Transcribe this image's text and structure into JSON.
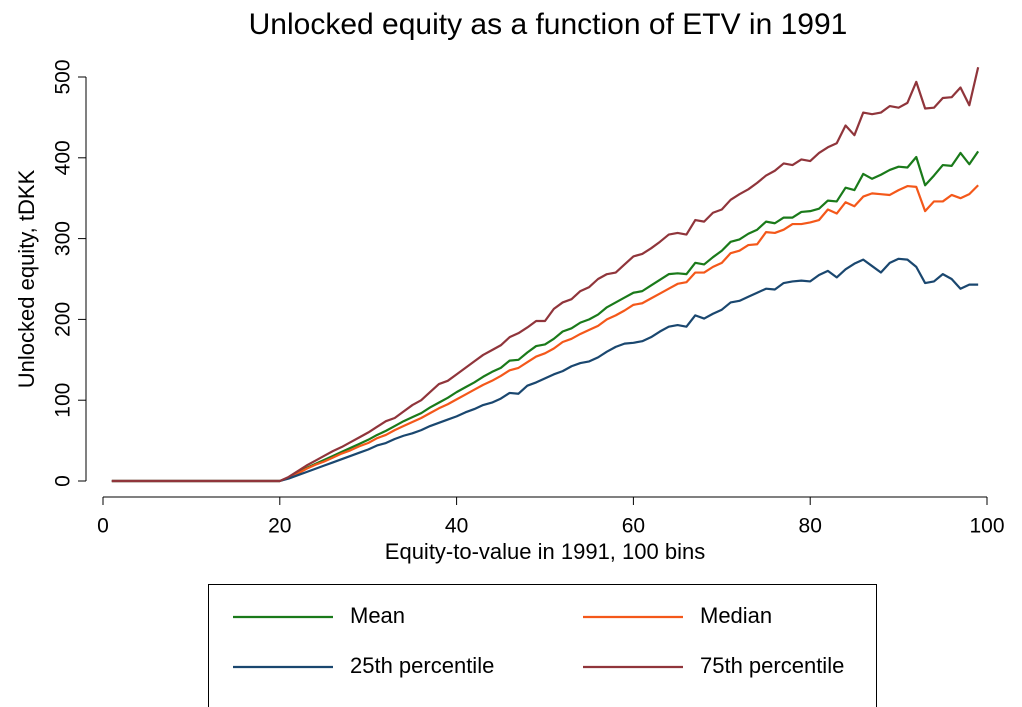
{
  "chart_data": {
    "type": "line",
    "title": "Unlocked equity as a function of ETV in 1991",
    "x_label": "Equity-to-value in 1991, 100 bins",
    "y_label": "Unlocked equity, tDKK",
    "x": [
      1,
      2,
      3,
      4,
      5,
      6,
      7,
      8,
      9,
      10,
      11,
      12,
      13,
      14,
      15,
      16,
      17,
      18,
      19,
      20,
      21,
      22,
      23,
      24,
      25,
      26,
      27,
      28,
      29,
      30,
      31,
      32,
      33,
      34,
      35,
      36,
      37,
      38,
      39,
      40,
      41,
      42,
      43,
      44,
      45,
      46,
      47,
      48,
      49,
      50,
      51,
      52,
      53,
      54,
      55,
      56,
      57,
      58,
      59,
      60,
      61,
      62,
      63,
      64,
      65,
      66,
      67,
      68,
      69,
      70,
      71,
      72,
      73,
      74,
      75,
      76,
      77,
      78,
      79,
      80,
      81,
      82,
      83,
      84,
      85,
      86,
      87,
      88,
      89,
      90,
      91,
      92,
      93,
      94,
      95,
      96,
      97,
      98,
      99
    ],
    "series": [
      {
        "name": "Mean",
        "color": "#1a7a1a",
        "values": [
          0,
          0,
          0,
          0,
          0,
          0,
          0,
          0,
          0,
          0,
          0,
          0,
          0,
          0,
          0,
          0,
          0,
          0,
          0,
          0,
          4,
          10,
          16,
          21,
          26,
          31,
          36,
          41,
          46,
          51,
          57,
          62,
          68,
          74,
          79,
          84,
          91,
          97,
          103,
          110,
          116,
          122,
          129,
          135,
          140,
          149,
          150,
          159,
          167,
          169,
          176,
          185,
          189,
          196,
          200,
          206,
          215,
          221,
          227,
          233,
          235,
          242,
          249,
          256,
          257,
          256,
          270,
          268,
          277,
          285,
          296,
          299,
          306,
          311,
          321,
          319,
          326,
          326,
          333,
          334,
          337,
          347,
          346,
          363,
          360,
          380,
          374,
          379,
          385,
          389,
          388,
          401,
          366,
          378,
          391,
          390,
          406,
          392,
          408
        ]
      },
      {
        "name": "Median",
        "color": "#f4581a",
        "values": [
          0,
          0,
          0,
          0,
          0,
          0,
          0,
          0,
          0,
          0,
          0,
          0,
          0,
          0,
          0,
          0,
          0,
          0,
          0,
          0,
          4,
          9,
          15,
          20,
          24,
          29,
          34,
          38,
          43,
          47,
          53,
          57,
          63,
          68,
          73,
          78,
          84,
          90,
          95,
          101,
          107,
          113,
          119,
          124,
          130,
          137,
          140,
          147,
          154,
          158,
          164,
          172,
          176,
          182,
          187,
          192,
          200,
          205,
          211,
          218,
          220,
          226,
          232,
          238,
          244,
          246,
          258,
          258,
          265,
          270,
          282,
          285,
          292,
          293,
          308,
          307,
          311,
          318,
          318,
          320,
          323,
          336,
          331,
          345,
          340,
          352,
          356,
          355,
          354,
          360,
          365,
          364,
          334,
          346,
          346,
          354,
          350,
          355,
          366
        ]
      },
      {
        "name": "25th percentile",
        "color": "#1a476f",
        "values": [
          0,
          0,
          0,
          0,
          0,
          0,
          0,
          0,
          0,
          0,
          0,
          0,
          0,
          0,
          0,
          0,
          0,
          0,
          0,
          0,
          3,
          7,
          11,
          15,
          19,
          23,
          27,
          31,
          35,
          39,
          44,
          47,
          52,
          56,
          59,
          63,
          68,
          72,
          76,
          80,
          85,
          89,
          94,
          97,
          102,
          109,
          108,
          118,
          122,
          127,
          132,
          136,
          142,
          146,
          148,
          153,
          160,
          166,
          170,
          171,
          173,
          178,
          185,
          191,
          193,
          191,
          205,
          201,
          207,
          212,
          221,
          223,
          228,
          233,
          238,
          237,
          245,
          247,
          248,
          247,
          255,
          260,
          252,
          262,
          269,
          274,
          266,
          258,
          270,
          275,
          274,
          265,
          245,
          247,
          256,
          250,
          238,
          243,
          243
        ]
      },
      {
        "name": "75th percentile",
        "color": "#90353b",
        "values": [
          0,
          0,
          0,
          0,
          0,
          0,
          0,
          0,
          0,
          0,
          0,
          0,
          0,
          0,
          0,
          0,
          0,
          0,
          0,
          0,
          5,
          12,
          19,
          25,
          31,
          37,
          42,
          48,
          54,
          60,
          67,
          74,
          78,
          86,
          94,
          100,
          110,
          120,
          124,
          132,
          140,
          148,
          156,
          162,
          168,
          178,
          183,
          190,
          198,
          198,
          213,
          221,
          225,
          235,
          240,
          250,
          256,
          258,
          268,
          278,
          281,
          288,
          296,
          305,
          307,
          305,
          323,
          321,
          332,
          336,
          348,
          355,
          361,
          369,
          378,
          384,
          393,
          391,
          398,
          396,
          406,
          413,
          418,
          440,
          428,
          456,
          454,
          456,
          464,
          462,
          468,
          494,
          461,
          462,
          474,
          475,
          487,
          465,
          512
        ]
      }
    ],
    "xlim": [
      0,
      100
    ],
    "xticks": [
      0,
      20,
      40,
      60,
      80,
      100
    ],
    "ylim": [
      0,
      500
    ],
    "yticks": [
      0,
      100,
      200,
      300,
      400,
      500
    ],
    "grid": false,
    "legend": "bottom"
  }
}
